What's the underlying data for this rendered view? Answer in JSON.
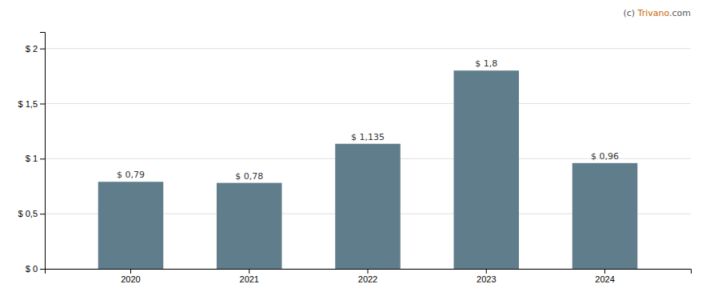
{
  "chart_data": {
    "type": "bar",
    "categories": [
      "2020",
      "2021",
      "2022",
      "2023",
      "2024"
    ],
    "values": [
      0.79,
      0.78,
      1.135,
      1.8,
      0.96
    ],
    "value_labels": [
      "$ 0,79",
      "$ 0,78",
      "$ 1,135",
      "$ 1,8",
      "$ 0,96"
    ],
    "color": "#607d8b",
    "ylim": [
      0,
      2.15
    ],
    "yticks": [
      {
        "value": 0,
        "label": "$ 0"
      },
      {
        "value": 0.5,
        "label": "$ 0,5"
      },
      {
        "value": 1.0,
        "label": "$ 1"
      },
      {
        "value": 1.5,
        "label": "$ 1,5"
      },
      {
        "value": 2.0,
        "label": "$ 2"
      }
    ],
    "grid": true,
    "data_labels": true,
    "annotations": [
      {
        "text": "(c) ",
        "color": "#555555"
      },
      {
        "text": "Trivano",
        "color": "#cc6600"
      },
      {
        "text": ".com",
        "color": "#555555"
      }
    ]
  }
}
